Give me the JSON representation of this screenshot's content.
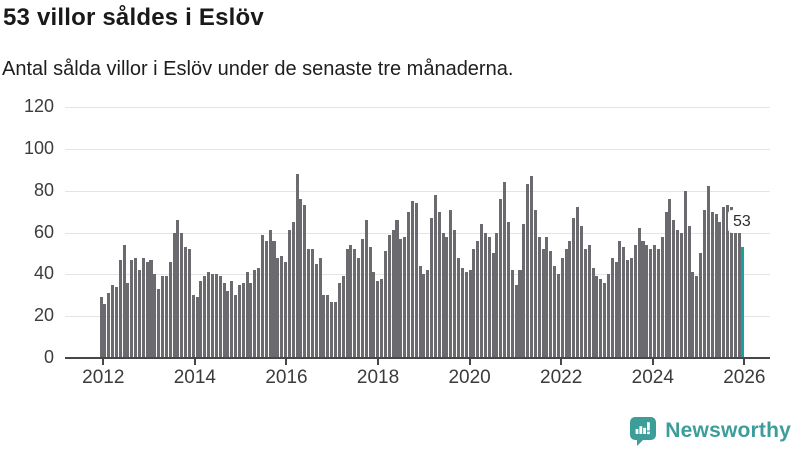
{
  "header": {
    "title": "53 villor såldes i Eslöv",
    "subtitle": "Antal sålda villor i Eslöv under de senaste tre månaderna."
  },
  "footer": {
    "brand": "Newsworthy"
  },
  "chart_data": {
    "type": "bar",
    "title": "53 villor såldes i Eslöv",
    "subtitle": "Antal sålda villor i Eslöv under de senaste tre månaderna.",
    "x_unit": "month",
    "x_range": [
      "2012-01",
      "2025-12"
    ],
    "xticks": [
      2012,
      2014,
      2016,
      2018,
      2020,
      2022,
      2024,
      2026
    ],
    "ylim": [
      0,
      120
    ],
    "yticks": [
      0,
      20,
      40,
      60,
      80,
      100,
      120
    ],
    "grid": "horizontal",
    "legend": "none",
    "values": [
      29,
      26,
      31,
      35,
      34,
      47,
      54,
      36,
      47,
      48,
      42,
      48,
      46,
      47,
      40,
      33,
      39,
      39,
      46,
      60,
      66,
      60,
      53,
      52,
      30,
      29,
      37,
      39,
      41,
      40,
      40,
      39,
      36,
      32,
      37,
      30,
      35,
      36,
      41,
      36,
      42,
      43,
      59,
      56,
      61,
      56,
      48,
      49,
      46,
      61,
      65,
      88,
      76,
      73,
      52,
      52,
      45,
      48,
      30,
      30,
      27,
      27,
      36,
      39,
      52,
      54,
      52,
      48,
      57,
      66,
      53,
      41,
      37,
      38,
      51,
      59,
      61,
      66,
      57,
      58,
      70,
      75,
      74,
      44,
      40,
      42,
      67,
      78,
      70,
      60,
      58,
      71,
      61,
      48,
      43,
      41,
      42,
      52,
      56,
      64,
      60,
      58,
      50,
      60,
      76,
      84,
      65,
      42,
      35,
      42,
      64,
      83,
      87,
      71,
      58,
      52,
      58,
      51,
      44,
      40,
      48,
      52,
      56,
      67,
      72,
      63,
      52,
      54,
      43,
      39,
      38,
      36,
      40,
      48,
      46,
      56,
      53,
      47,
      48,
      54,
      62,
      56,
      54,
      52,
      54,
      52,
      58,
      70,
      76,
      66,
      61,
      60,
      80,
      63,
      41,
      39,
      50,
      71,
      82,
      70,
      69,
      65,
      72,
      73,
      72,
      69,
      60,
      53
    ],
    "highlight_last": {
      "value": 53,
      "label": "53"
    },
    "colors": {
      "bar": "#6a6a6f",
      "highlight": "#16a3a0",
      "grid": "#e4e4e4",
      "axis": "#474747",
      "label_text": "#2d2d2d",
      "brand": "#3d9d99"
    }
  }
}
